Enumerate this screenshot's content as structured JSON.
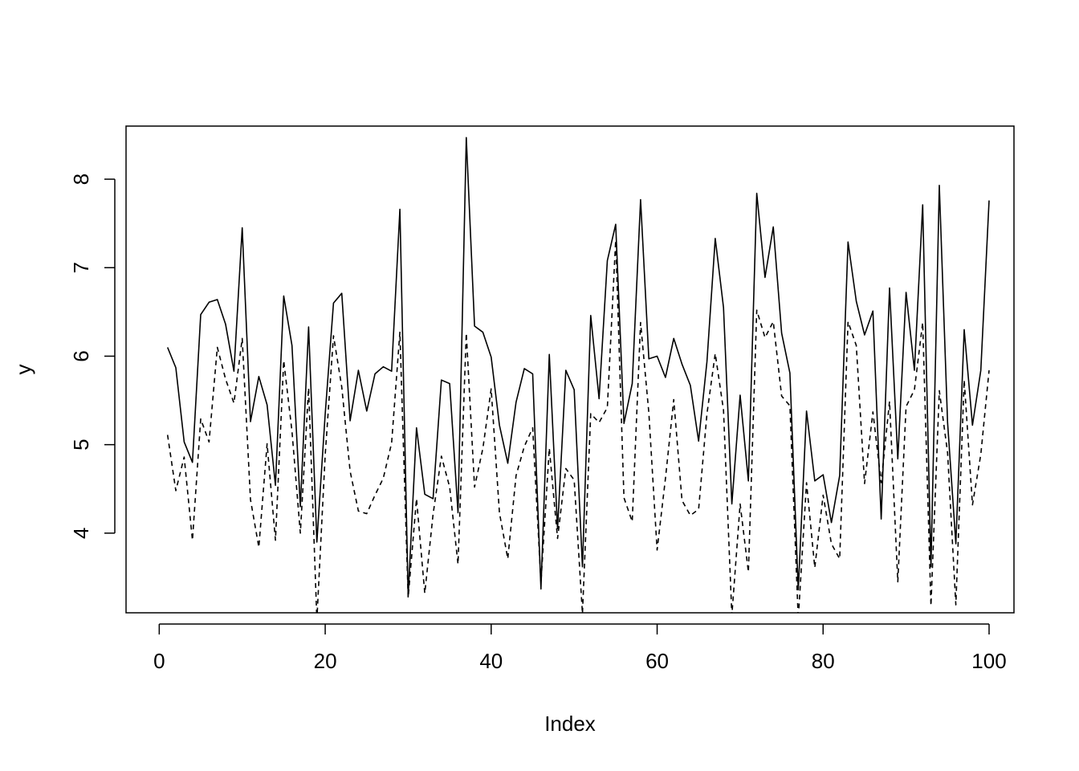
{
  "chart_data": {
    "type": "line",
    "title": "",
    "xlabel": "Index",
    "ylabel": "y",
    "xlim": [
      -4,
      103
    ],
    "ylim": [
      3.1,
      8.6
    ],
    "x_ticks": [
      0,
      20,
      40,
      60,
      80,
      100
    ],
    "y_ticks": [
      4,
      5,
      6,
      7,
      8
    ],
    "grid": false,
    "legend": "none",
    "series": [
      {
        "line_style": "solid",
        "color": "#000000",
        "x": [
          1,
          2,
          3,
          4,
          5,
          6,
          7,
          8,
          9,
          10,
          11,
          12,
          13,
          14,
          15,
          16,
          17,
          18,
          19,
          20,
          21,
          22,
          23,
          24,
          25,
          26,
          27,
          28,
          29,
          30,
          31,
          32,
          33,
          34,
          35,
          36,
          37,
          38,
          39,
          40,
          41,
          42,
          43,
          44,
          45,
          46,
          47,
          48,
          49,
          50,
          51,
          52,
          53,
          54,
          55,
          56,
          57,
          58,
          59,
          60,
          61,
          62,
          63,
          64,
          65,
          66,
          67,
          68,
          69,
          70,
          71,
          72,
          73,
          74,
          75,
          76,
          77,
          78,
          79,
          80,
          81,
          82,
          83,
          84,
          85,
          86,
          87,
          88,
          89,
          90,
          91,
          92,
          93,
          94,
          95,
          96,
          97,
          98,
          99,
          100
        ],
        "values": [
          6.1,
          5.87,
          5.03,
          4.8,
          6.47,
          6.61,
          6.64,
          6.36,
          5.83,
          7.45,
          5.26,
          5.77,
          5.45,
          4.54,
          6.68,
          6.12,
          4.3,
          6.33,
          3.9,
          5.35,
          6.6,
          6.71,
          5.27,
          5.84,
          5.38,
          5.8,
          5.88,
          5.83,
          7.66,
          3.29,
          5.19,
          4.44,
          4.39,
          5.73,
          5.69,
          4.23,
          8.47,
          6.34,
          6.27,
          5.99,
          5.22,
          4.79,
          5.48,
          5.86,
          5.8,
          3.37,
          6.02,
          4.05,
          5.84,
          5.62,
          3.62,
          6.46,
          5.52,
          7.08,
          7.49,
          5.24,
          5.69,
          7.77,
          5.97,
          6.0,
          5.76,
          6.2,
          5.91,
          5.67,
          5.04,
          5.94,
          7.33,
          6.55,
          4.33,
          5.56,
          4.59,
          7.84,
          6.89,
          7.46,
          6.26,
          5.81,
          3.36,
          5.38,
          4.59,
          4.66,
          4.12,
          4.65,
          7.29,
          6.62,
          6.24,
          6.51,
          4.16,
          6.77,
          4.84,
          6.72,
          5.84,
          7.71,
          3.62,
          7.93,
          5.25,
          3.88,
          6.3,
          5.22,
          5.84,
          7.76
        ]
      },
      {
        "line_style": "dashed",
        "color": "#000000",
        "x": [
          1,
          2,
          3,
          4,
          5,
          6,
          7,
          8,
          9,
          10,
          11,
          12,
          13,
          14,
          15,
          16,
          17,
          18,
          19,
          20,
          21,
          22,
          23,
          24,
          25,
          26,
          27,
          28,
          29,
          30,
          31,
          32,
          33,
          34,
          35,
          36,
          37,
          38,
          39,
          40,
          41,
          42,
          43,
          44,
          45,
          46,
          47,
          48,
          49,
          50,
          51,
          52,
          53,
          54,
          55,
          56,
          57,
          58,
          59,
          60,
          61,
          62,
          63,
          64,
          65,
          66,
          67,
          68,
          69,
          70,
          71,
          72,
          73,
          74,
          75,
          76,
          77,
          78,
          79,
          80,
          81,
          82,
          83,
          84,
          85,
          86,
          87,
          88,
          89,
          90,
          91,
          92,
          93,
          94,
          95,
          96,
          97,
          98,
          99,
          100
        ],
        "values": [
          5.11,
          4.48,
          4.86,
          3.92,
          5.29,
          5.03,
          6.1,
          5.74,
          5.47,
          6.2,
          4.38,
          3.84,
          5.01,
          3.92,
          5.95,
          5.15,
          4.0,
          5.64,
          3.02,
          4.89,
          6.23,
          5.65,
          4.7,
          4.25,
          4.22,
          4.43,
          4.62,
          5.02,
          6.27,
          3.27,
          4.39,
          3.32,
          4.21,
          4.87,
          4.52,
          3.65,
          6.26,
          4.52,
          4.96,
          5.63,
          4.23,
          3.71,
          4.65,
          4.98,
          5.19,
          3.44,
          4.96,
          3.94,
          4.73,
          4.6,
          3.09,
          5.35,
          5.25,
          5.42,
          7.31,
          4.4,
          4.13,
          6.38,
          5.36,
          3.81,
          4.62,
          5.51,
          4.37,
          4.2,
          4.27,
          5.35,
          6.03,
          5.39,
          3.07,
          4.33,
          3.56,
          6.52,
          6.21,
          6.39,
          5.55,
          5.44,
          3.03,
          4.57,
          3.61,
          4.43,
          3.88,
          3.71,
          6.39,
          6.12,
          4.56,
          5.37,
          4.57,
          5.49,
          3.45,
          5.43,
          5.62,
          6.38,
          3.18,
          5.61,
          4.91,
          3.19,
          5.73,
          4.32,
          4.89,
          5.84
        ]
      }
    ]
  }
}
